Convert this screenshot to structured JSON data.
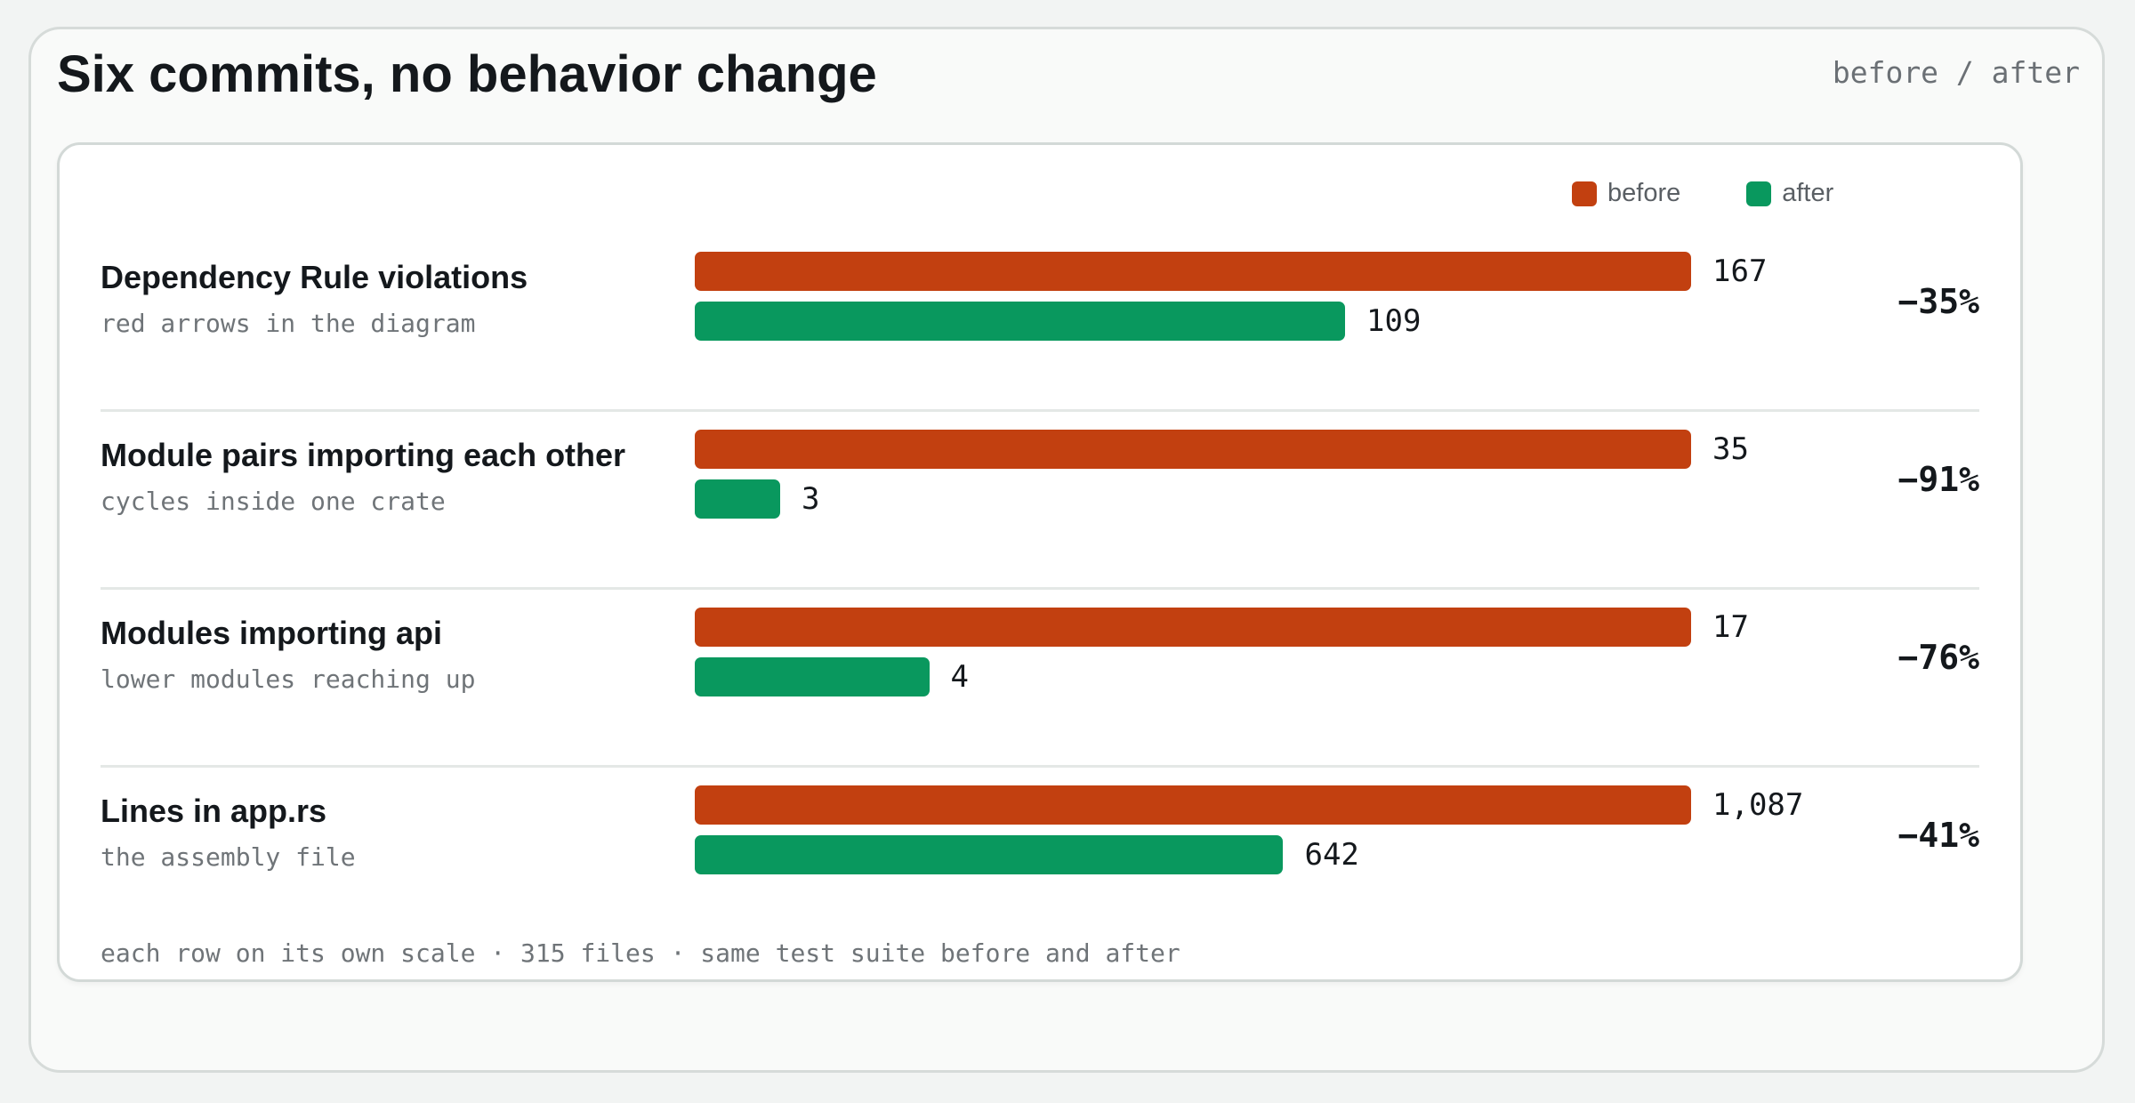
{
  "header": {
    "title": "Six commits, no behavior change",
    "tag": "before / after"
  },
  "legend": {
    "before": "before",
    "after": "after"
  },
  "colors": {
    "before": "#c24010",
    "after": "#09985e"
  },
  "footnote": "each row on its own scale · 315 files · same test suite before and after",
  "chart_data": {
    "type": "bar",
    "orientation": "horizontal",
    "series": [
      {
        "name": "before",
        "values": [
          167,
          35,
          17,
          1087
        ]
      },
      {
        "name": "after",
        "values": [
          109,
          3,
          4,
          642
        ]
      }
    ],
    "scale": "per-row",
    "grid": false,
    "legend_position": "top-right",
    "rows": [
      {
        "label": "Dependency Rule violations",
        "sublabel": "red arrows in the diagram",
        "before": 167,
        "after": 109,
        "before_label": "167",
        "after_label": "109",
        "delta": "−35%"
      },
      {
        "label": "Module pairs importing each other",
        "sublabel": "cycles inside one crate",
        "before": 35,
        "after": 3,
        "before_label": "35",
        "after_label": "3",
        "delta": "−91%"
      },
      {
        "label": "Modules importing api",
        "sublabel": "lower modules reaching up",
        "before": 17,
        "after": 4,
        "before_label": "17",
        "after_label": "4",
        "delta": "−76%"
      },
      {
        "label": "Lines in app.rs",
        "sublabel": "the assembly file",
        "before": 1087,
        "after": 642,
        "before_label": "1,087",
        "after_label": "642",
        "delta": "−41%"
      }
    ]
  }
}
